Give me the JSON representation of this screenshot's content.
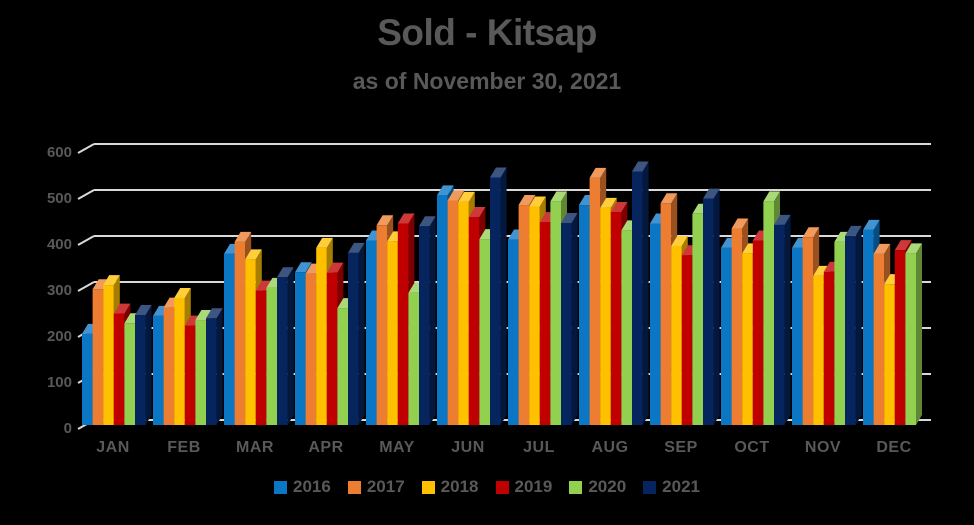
{
  "title": "Sold - Kitsap",
  "subtitle": "as of November 30, 2021",
  "colors": {
    "background": "#000000",
    "text": "#595959",
    "gridline": "#d9d9d9"
  },
  "chart_data": {
    "type": "bar",
    "variant": "3d-clustered-column",
    "title": "Sold - Kitsap",
    "subtitle": "as of November 30, 2021",
    "categories": [
      "JAN",
      "FEB",
      "MAR",
      "APR",
      "MAY",
      "JUN",
      "JUL",
      "AUG",
      "SEP",
      "OCT",
      "NOV",
      "DEC"
    ],
    "series": [
      {
        "name": "2016",
        "color": "#0b76c4",
        "values": [
          209,
          248,
          383,
          343,
          412,
          510,
          414,
          489,
          449,
          396,
          396,
          435
        ]
      },
      {
        "name": "2017",
        "color": "#ed7d31",
        "values": [
          306,
          266,
          409,
          340,
          445,
          499,
          489,
          548,
          493,
          438,
          419,
          383
        ]
      },
      {
        "name": "2018",
        "color": "#ffc000",
        "values": [
          315,
          287,
          371,
          396,
          410,
          496,
          486,
          483,
          400,
          384,
          335,
          317
        ]
      },
      {
        "name": "2019",
        "color": "#c00000",
        "values": [
          253,
          227,
          303,
          342,
          449,
          463,
          452,
          474,
          380,
          412,
          344,
          391
        ]
      },
      {
        "name": "2020",
        "color": "#92d050",
        "values": [
          232,
          239,
          309,
          265,
          298,
          415,
          497,
          434,
          470,
          497,
          409,
          384
        ]
      },
      {
        "name": "2021",
        "color": "#06255e",
        "values": [
          250,
          243,
          332,
          385,
          443,
          549,
          450,
          562,
          503,
          446,
          422,
          null
        ]
      }
    ],
    "xlabel": "",
    "ylabel": "",
    "ylim": [
      0,
      600
    ],
    "y_ticks": [
      0,
      100,
      200,
      300,
      400,
      500,
      600
    ],
    "grid": "horizontal",
    "legend_position": "bottom"
  }
}
